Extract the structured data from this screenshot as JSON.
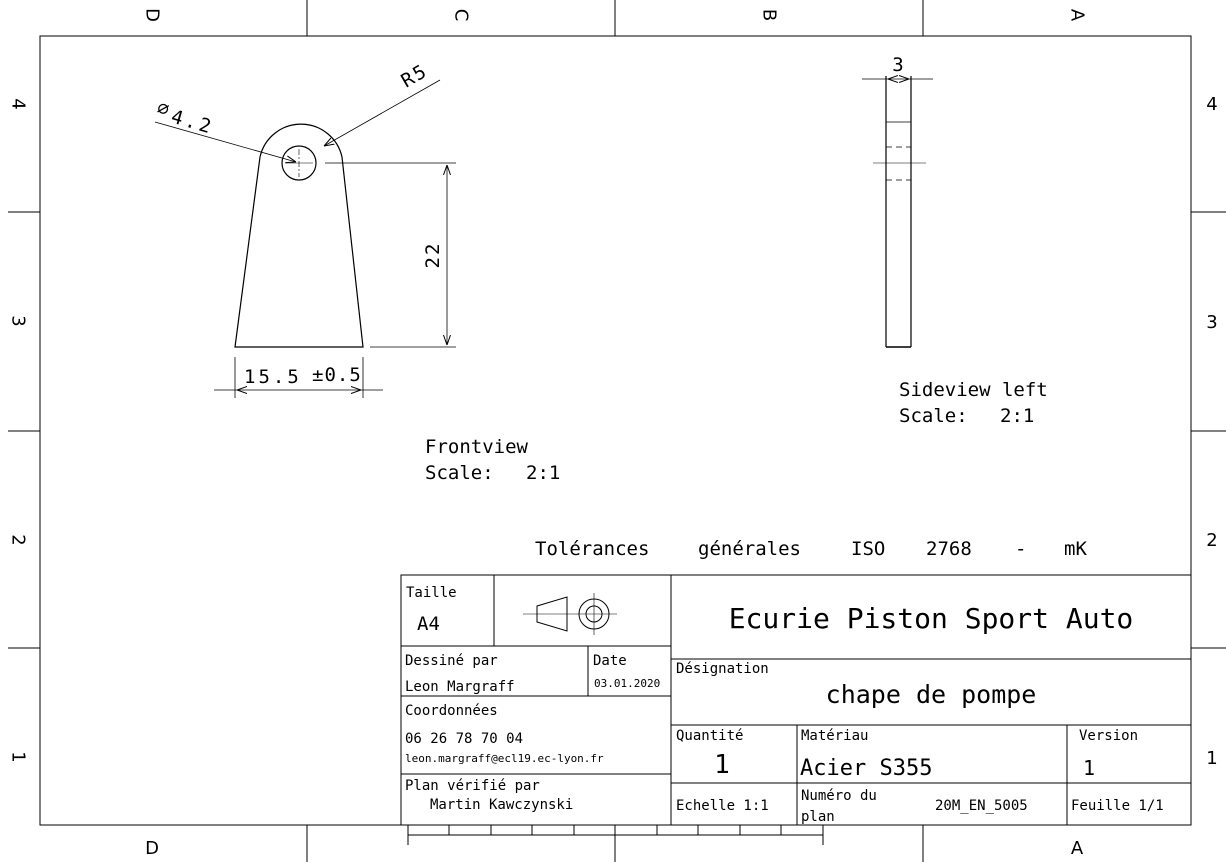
{
  "zones": {
    "columns": [
      "D",
      "C",
      "B",
      "A"
    ],
    "rows": [
      "4",
      "3",
      "2",
      "1"
    ]
  },
  "front_view": {
    "label": "Frontview",
    "scale_label": "Scale:",
    "scale": "2:1",
    "dimensions": {
      "hole_diameter_symbol": "∅",
      "hole_diameter": "4.2",
      "radius": "R5",
      "height": "22",
      "width": "15.5",
      "width_tolerance": "±0.5"
    }
  },
  "side_view": {
    "label": "Sideview left",
    "scale_label": "Scale:",
    "scale": "2:1",
    "dimensions": {
      "thickness": "3"
    }
  },
  "tolerances": {
    "label": "Tolérances",
    "word2": "générales",
    "standard": "ISO",
    "number": "2768",
    "dash": "-",
    "class": "mK"
  },
  "title_block": {
    "size_label": "Taille",
    "size_value": "A4",
    "company": "Ecurie Piston Sport Auto",
    "drawn_by_label": "Dessiné par",
    "drawn_by": "Leon Margraff",
    "date_label": "Date",
    "date": "03.01.2020",
    "designation_label": "Désignation",
    "designation": "chape de pompe",
    "contact_label": "Coordonnées",
    "phone": "06 26 78 70 04",
    "email": "leon.margraff@ecl19.ec-lyon.fr",
    "quantity_label": "Quantité",
    "quantity": "1",
    "material_label": "Matériau",
    "material": "Acier S355",
    "version_label": "Version",
    "version": "1",
    "checked_by_label": "Plan vérifié par",
    "checked_by": "Martin Kawczynski",
    "scale_text": "Echelle 1:1",
    "plan_number_label_1": "Numéro du",
    "plan_number_label_2": "plan",
    "plan_number": "20M_EN_5005",
    "sheet_text": "Feuille 1/1"
  }
}
